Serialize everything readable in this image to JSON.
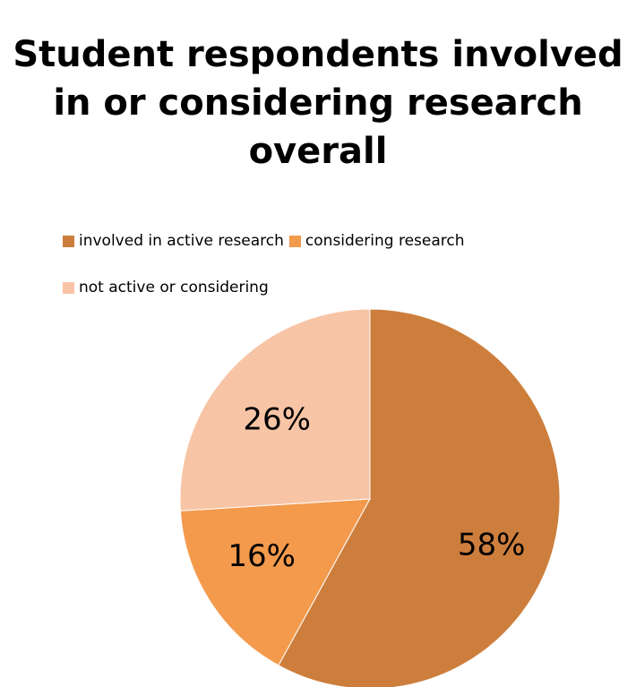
{
  "chart_data": {
    "type": "pie",
    "title": "Student respondents involved in or considering research overall",
    "categories": [
      "involved in active research",
      "considering research",
      "not active or considering"
    ],
    "values": [
      58,
      16,
      26
    ],
    "labels": [
      "58%",
      "16%",
      "26%"
    ],
    "colors": [
      "#CD7E3C",
      "#F39A4C",
      "#F8C4A6"
    ],
    "legend_position": "top"
  }
}
